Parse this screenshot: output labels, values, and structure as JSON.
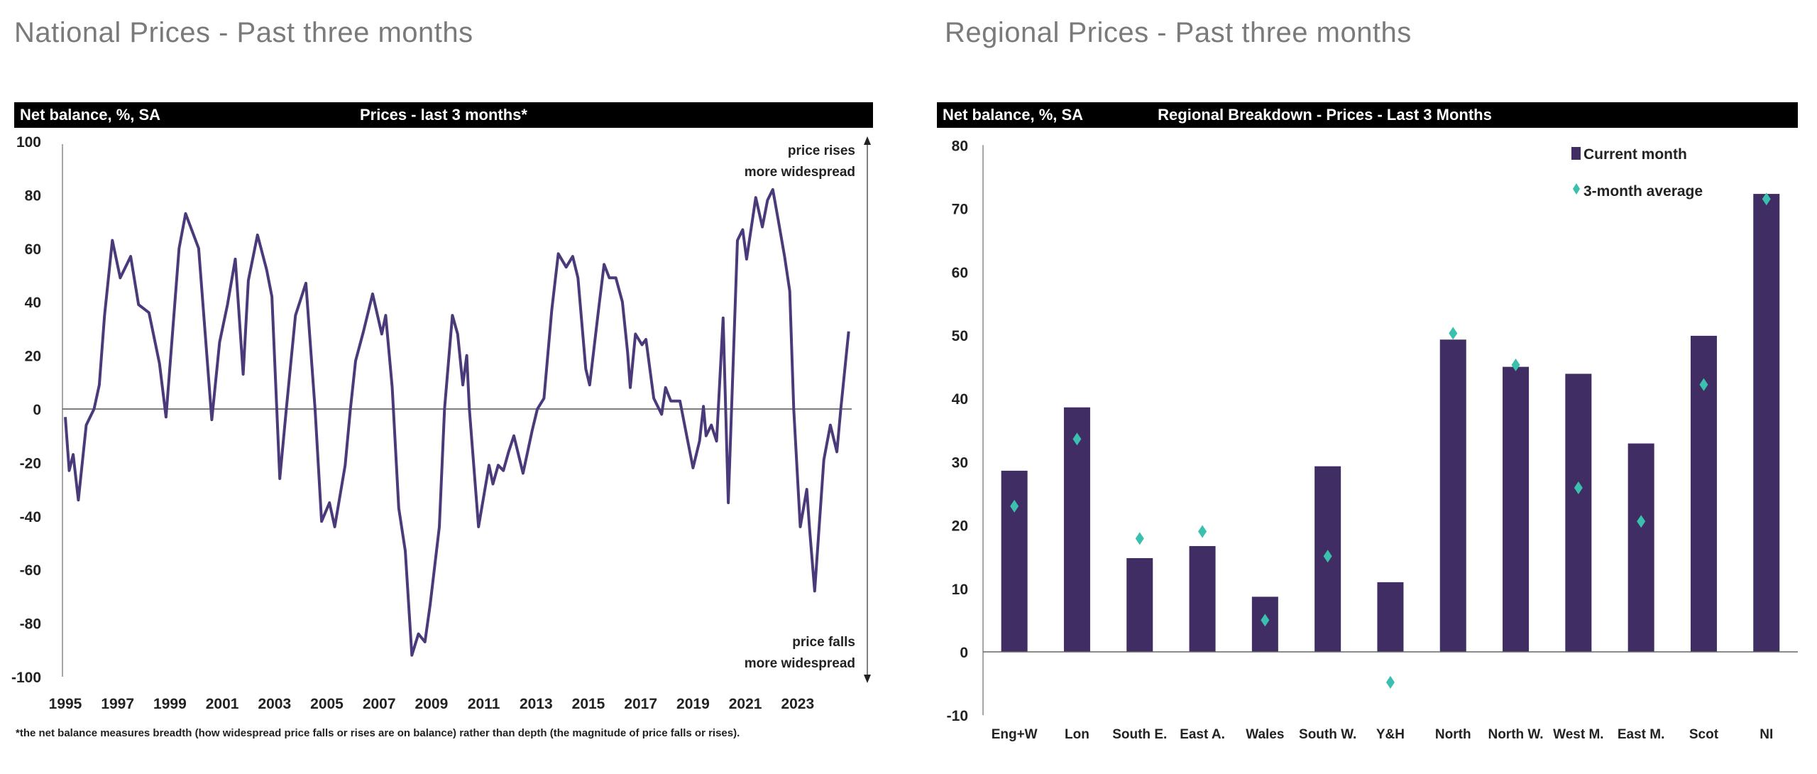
{
  "left": {
    "title": "National Prices - Past three months",
    "header_left": "Net balance, %, SA",
    "header_center": "Prices - last 3 months*",
    "annotation_top": [
      "price rises",
      "more widespread"
    ],
    "annotation_bottom": [
      "price falls",
      "more widespread"
    ],
    "footnote": "*the net balance measures breadth (how widespread price falls or rises are on balance)  rather than depth (the magnitude of price falls or rises)."
  },
  "right": {
    "title": "Regional Prices - Past three months",
    "header_left": "Net balance, %, SA",
    "header_center": "Regional Breakdown - Prices - Last 3 Months"
  },
  "colors": {
    "line": "#4b3a7a",
    "bar": "#3f2d63",
    "diamond": "#3bbfae",
    "axis": "#666666"
  },
  "chart_data": [
    {
      "type": "line",
      "title": "Prices - last 3 months*",
      "ylabel": "Net balance, %, SA",
      "ylim": [
        -100,
        100
      ],
      "yticks": [
        100,
        80,
        60,
        40,
        20,
        0,
        -20,
        -40,
        -60,
        -80,
        -100
      ],
      "xticks": [
        "1995",
        "1997",
        "1999",
        "2001",
        "2003",
        "2005",
        "2007",
        "2009",
        "2011",
        "2013",
        "2015",
        "2017",
        "2019",
        "2021",
        "2023"
      ],
      "xlim": [
        1995,
        2025
      ],
      "grid": false,
      "x": [
        1995.0,
        1995.15,
        1995.3,
        1995.5,
        1995.8,
        1996.1,
        1996.3,
        1996.5,
        1996.8,
        1997.1,
        1997.5,
        1997.8,
        1998.2,
        1998.6,
        1998.85,
        1999.35,
        1999.6,
        2000.1,
        2000.6,
        2000.9,
        2001.2,
        2001.5,
        2001.8,
        2002.0,
        2002.35,
        2002.7,
        2002.9,
        2003.2,
        2003.45,
        2003.8,
        2004.2,
        2004.55,
        2004.8,
        2005.1,
        2005.3,
        2005.7,
        2005.9,
        2006.1,
        2006.4,
        2006.75,
        2007.1,
        2007.25,
        2007.5,
        2007.75,
        2008.0,
        2008.25,
        2008.5,
        2008.75,
        2008.95,
        2009.3,
        2009.5,
        2009.8,
        2010.0,
        2010.2,
        2010.35,
        2010.45,
        2010.8,
        2011.2,
        2011.35,
        2011.55,
        2011.75,
        2011.95,
        2012.15,
        2012.5,
        2012.85,
        2013.05,
        2013.3,
        2013.6,
        2013.85,
        2014.15,
        2014.4,
        2014.6,
        2014.9,
        2015.05,
        2015.4,
        2015.6,
        2015.8,
        2016.05,
        2016.3,
        2016.5,
        2016.6,
        2016.8,
        2017.05,
        2017.2,
        2017.5,
        2017.8,
        2017.95,
        2018.15,
        2018.5,
        2018.8,
        2019.0,
        2019.25,
        2019.4,
        2019.5,
        2019.7,
        2019.9,
        2020.15,
        2020.35,
        2020.7,
        2020.9,
        2021.05,
        2021.4,
        2021.65,
        2021.85,
        2022.05,
        2022.25,
        2022.5,
        2022.7,
        2022.85,
        2023.1,
        2023.35,
        2023.45,
        2023.65,
        2024.0,
        2024.25,
        2024.5,
        2024.65,
        2024.95
      ],
      "y": [
        -3,
        -23,
        -17,
        -34,
        -6,
        0,
        9,
        35,
        63,
        49,
        57,
        39,
        36,
        17,
        -3,
        60,
        73,
        60,
        -4,
        25,
        39,
        56,
        13,
        48,
        65,
        52,
        42,
        -26,
        0,
        35,
        47,
        0,
        -42,
        -35,
        -44,
        -21,
        0,
        18,
        29,
        43,
        28,
        35,
        8,
        -37,
        -53,
        -92,
        -84,
        -87,
        -73,
        -44,
        0,
        35,
        28,
        9,
        20,
        0,
        -44,
        -21,
        -28,
        -21,
        -23,
        -16,
        -10,
        -24,
        -8,
        0,
        4,
        37,
        58,
        53,
        57,
        49,
        15,
        9,
        38,
        54,
        49,
        49,
        40,
        21,
        8,
        28,
        24,
        26,
        4,
        -2,
        8,
        3,
        3,
        -12,
        -22,
        -12,
        1,
        -10,
        -6,
        -12,
        34,
        -35,
        63,
        67,
        56,
        79,
        68,
        78,
        82,
        71,
        57,
        44,
        0,
        -44,
        -30,
        -44,
        -68,
        -19,
        -6,
        -16,
        0,
        29
      ]
    },
    {
      "type": "bar",
      "title": "Regional Breakdown - Prices - Last 3 Months",
      "ylabel": "Net balance, %, SA",
      "ylim": [
        -10,
        80
      ],
      "yticks": [
        80,
        70,
        60,
        50,
        40,
        30,
        20,
        10,
        0,
        -10
      ],
      "grid": false,
      "legend": "top-right",
      "categories": [
        "Eng+W",
        "Lon",
        "South E.",
        "East A.",
        "Wales",
        "South W.",
        "Y&H",
        "North",
        "North W.",
        "West M.",
        "East M.",
        "Scot",
        "NI"
      ],
      "series": [
        {
          "name": "Current month",
          "kind": "bar",
          "values": [
            28.6,
            38.6,
            14.8,
            16.7,
            8.7,
            29.3,
            11.0,
            49.3,
            45.0,
            43.9,
            32.9,
            49.9,
            72.3
          ]
        },
        {
          "name": "3-month average",
          "kind": "marker",
          "values": [
            23.0,
            33.6,
            17.9,
            19.0,
            5.0,
            15.1,
            -4.8,
            50.3,
            45.3,
            25.9,
            20.6,
            42.2,
            71.5
          ]
        }
      ]
    }
  ]
}
